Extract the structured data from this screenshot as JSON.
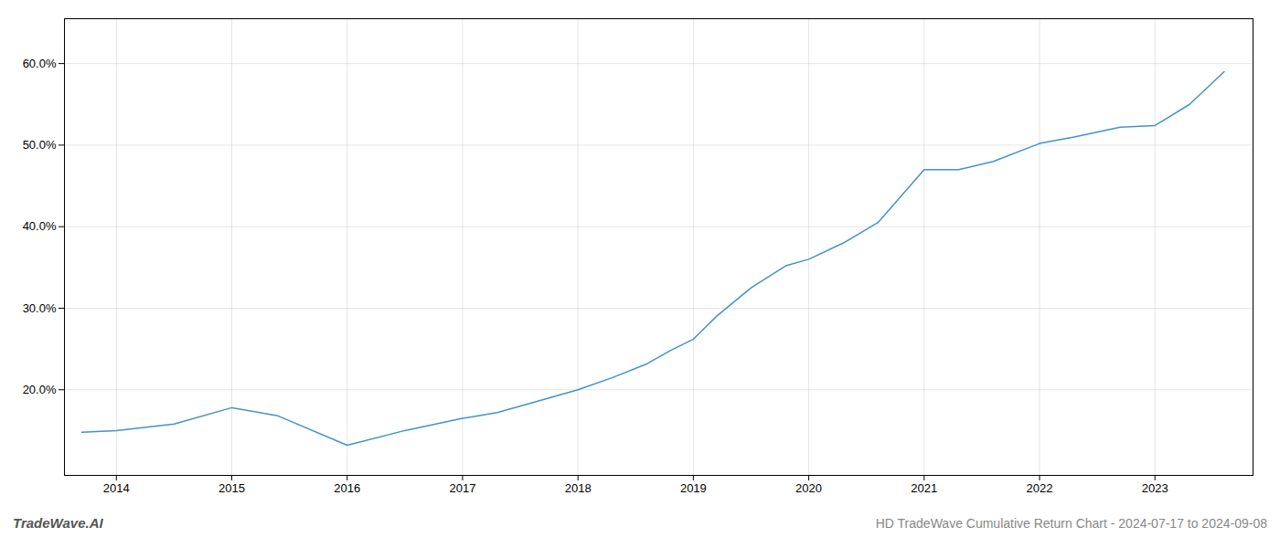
{
  "chart_data": {
    "type": "line",
    "title": "HD TradeWave Cumulative Return Chart - 2024-07-17 to 2024-09-08",
    "annotations": [
      "TradeWave.AI"
    ],
    "x": [
      2013.7,
      2014.0,
      2014.5,
      2015.0,
      2015.4,
      2016.0,
      2016.5,
      2017.0,
      2017.3,
      2017.7,
      2018.0,
      2018.3,
      2018.6,
      2018.8,
      2019.0,
      2019.2,
      2019.5,
      2019.8,
      2020.0,
      2020.3,
      2020.6,
      2021.0,
      2021.3,
      2021.6,
      2022.0,
      2022.3,
      2022.7,
      2023.0,
      2023.3,
      2023.6
    ],
    "values": [
      0.148,
      0.15,
      0.158,
      0.178,
      0.168,
      0.132,
      0.15,
      0.165,
      0.172,
      0.188,
      0.2,
      0.215,
      0.232,
      0.248,
      0.262,
      0.29,
      0.325,
      0.352,
      0.36,
      0.38,
      0.405,
      0.47,
      0.47,
      0.48,
      0.502,
      0.51,
      0.522,
      0.524,
      0.55,
      0.59
    ],
    "color": "#4393c7",
    "xlim": [
      2013.55,
      2023.85
    ],
    "ylim": [
      0.095,
      0.655
    ],
    "xticks": [
      2014,
      2015,
      2016,
      2017,
      2018,
      2019,
      2020,
      2021,
      2022,
      2023
    ],
    "yticks": [
      {
        "value": 0.2,
        "label": "20.0%"
      },
      {
        "value": 0.3,
        "label": "30.0%"
      },
      {
        "value": 0.4,
        "label": "40.0%"
      },
      {
        "value": 0.5,
        "label": "50.0%"
      },
      {
        "value": 0.6,
        "label": "60.0%"
      }
    ],
    "grid": true
  }
}
